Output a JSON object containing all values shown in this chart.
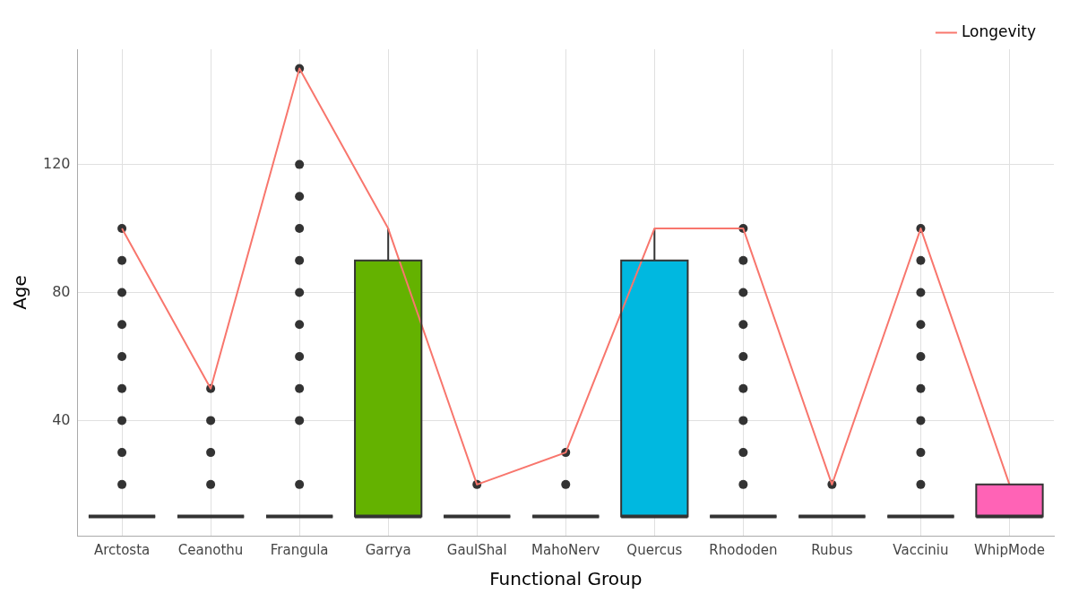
{
  "chart_data": {
    "type": "box",
    "xlabel": "Functional Group",
    "ylabel": "Age",
    "categories": [
      "Arctosta",
      "Ceanothu",
      "Frangula",
      "Garrya",
      "GaulShal",
      "MahoNerv",
      "Quercus",
      "Rhododen",
      "Rubus",
      "Vacciniu",
      "WhipMode"
    ],
    "colors": [
      "#333333",
      "#333333",
      "#333333",
      "#64b200",
      "#333333",
      "#333333",
      "#00b8e0",
      "#333333",
      "#333333",
      "#333333",
      "#ff63b6"
    ],
    "boxes": [
      {
        "low": 10,
        "q1": 10,
        "median": 10,
        "q3": 10,
        "high": 10,
        "outliers": [
          20,
          30,
          40,
          50,
          60,
          70,
          80,
          90,
          100
        ]
      },
      {
        "low": 10,
        "q1": 10,
        "median": 10,
        "q3": 10,
        "high": 10,
        "outliers": [
          20,
          30,
          40,
          50
        ]
      },
      {
        "low": 10,
        "q1": 10,
        "median": 10,
        "q3": 10,
        "high": 10,
        "outliers": [
          20,
          40,
          50,
          60,
          70,
          80,
          90,
          100,
          110,
          120,
          150
        ]
      },
      {
        "low": 10,
        "q1": 10,
        "median": 10,
        "q3": 90,
        "high": 100
      },
      {
        "low": 10,
        "q1": 10,
        "median": 10,
        "q3": 10,
        "high": 10,
        "outliers": [
          20
        ]
      },
      {
        "low": 10,
        "q1": 10,
        "median": 10,
        "q3": 10,
        "high": 10,
        "outliers": [
          20,
          30
        ]
      },
      {
        "low": 10,
        "q1": 10,
        "median": 10,
        "q3": 90,
        "high": 100
      },
      {
        "low": 10,
        "q1": 10,
        "median": 10,
        "q3": 10,
        "high": 10,
        "outliers": [
          20,
          30,
          40,
          50,
          60,
          70,
          80,
          90,
          100
        ]
      },
      {
        "low": 10,
        "q1": 10,
        "median": 10,
        "q3": 10,
        "high": 10,
        "outliers": [
          20
        ]
      },
      {
        "low": 10,
        "q1": 10,
        "median": 10,
        "q3": 10,
        "high": 10,
        "outliers": [
          20,
          30,
          40,
          50,
          60,
          70,
          80,
          90,
          100
        ]
      },
      {
        "low": 10,
        "q1": 10,
        "median": 10,
        "q3": 20,
        "high": 20
      }
    ],
    "series": [
      {
        "type": "line",
        "name": "Longevity",
        "color": "#f8766d",
        "values": [
          100,
          50,
          150,
          100,
          20,
          30,
          100,
          100,
          20,
          100,
          20
        ]
      }
    ],
    "ylim": [
      4,
      156
    ],
    "yticks": [
      40,
      80,
      120
    ],
    "grid": true,
    "legend": "top right"
  }
}
